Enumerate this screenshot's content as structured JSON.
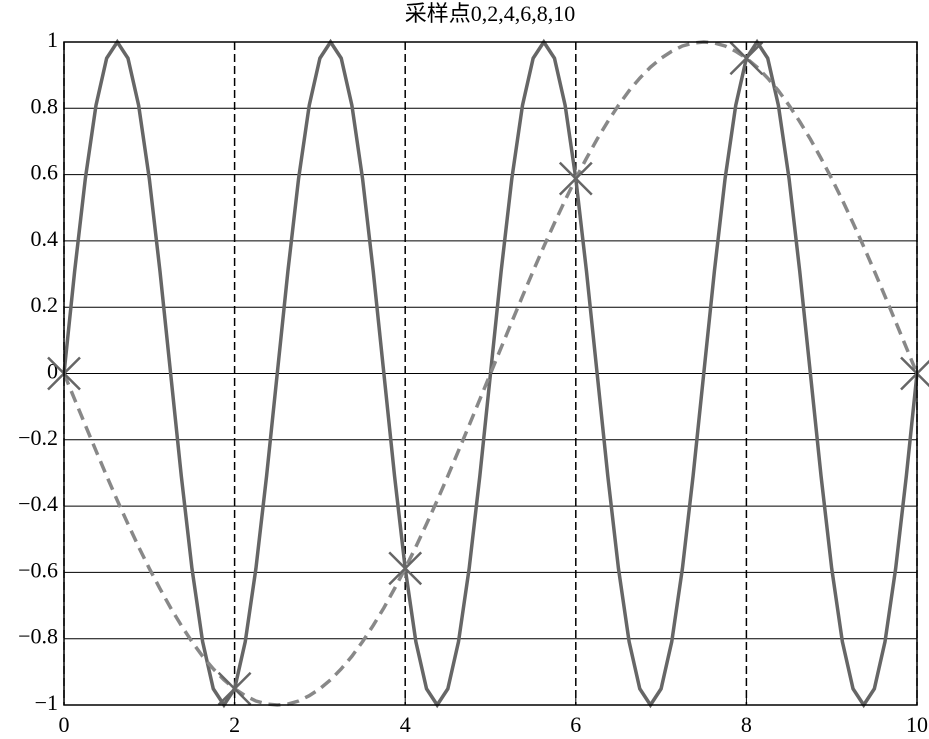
{
  "chart_data": {
    "type": "line",
    "title": "采样点0,2,4,6,8,10",
    "x": [
      0,
      0.125,
      0.25,
      0.375,
      0.5,
      0.625,
      0.75,
      0.875,
      1,
      1.125,
      1.25,
      1.375,
      1.5,
      1.625,
      1.75,
      1.875,
      2,
      2.125,
      2.25,
      2.375,
      2.5,
      2.625,
      2.75,
      2.875,
      3,
      3.125,
      3.25,
      3.375,
      3.5,
      3.625,
      3.75,
      3.875,
      4,
      4.125,
      4.25,
      4.375,
      4.5,
      4.625,
      4.75,
      4.875,
      5,
      5.125,
      5.25,
      5.375,
      5.5,
      5.625,
      5.75,
      5.875,
      6,
      6.125,
      6.25,
      6.375,
      6.5,
      6.625,
      6.75,
      6.875,
      7,
      7.125,
      7.25,
      7.375,
      7.5,
      7.625,
      7.75,
      7.875,
      8,
      8.125,
      8.25,
      8.375,
      8.5,
      8.625,
      8.75,
      8.875,
      9,
      9.125,
      9.25,
      9.375,
      9.5,
      9.625,
      9.75,
      9.875,
      10
    ],
    "series": [
      {
        "color": "#666666",
        "dash": false,
        "values": [
          0,
          0.309,
          0.588,
          0.809,
          0.951,
          1,
          0.951,
          0.809,
          0.588,
          0.309,
          0,
          -0.309,
          -0.588,
          -0.809,
          -0.951,
          -1,
          -0.951,
          -0.809,
          -0.588,
          -0.309,
          0,
          0.309,
          0.588,
          0.809,
          0.951,
          1,
          0.951,
          0.809,
          0.588,
          0.309,
          0,
          -0.309,
          -0.588,
          -0.809,
          -0.951,
          -1,
          -0.951,
          -0.809,
          -0.588,
          -0.309,
          0,
          0.309,
          0.588,
          0.809,
          0.951,
          1,
          0.951,
          0.809,
          0.588,
          0.309,
          0,
          -0.309,
          -0.588,
          -0.809,
          -0.951,
          -1,
          -0.951,
          -0.809,
          -0.588,
          -0.309,
          0,
          0.309,
          0.588,
          0.809,
          0.951,
          1,
          0.951,
          0.809,
          0.588,
          0.309,
          0,
          -0.309,
          -0.588,
          -0.809,
          -0.951,
          -1,
          -0.951,
          -0.809,
          -0.588,
          -0.309,
          0
        ]
      },
      {
        "color": "#888888",
        "dash": true,
        "values": [
          0,
          -0.078,
          -0.156,
          -0.233,
          -0.309,
          -0.383,
          -0.454,
          -0.523,
          -0.588,
          -0.649,
          -0.707,
          -0.76,
          -0.809,
          -0.853,
          -0.891,
          -0.924,
          -0.951,
          -0.972,
          -0.988,
          -0.997,
          -1,
          -0.997,
          -0.988,
          -0.972,
          -0.951,
          -0.924,
          -0.891,
          -0.853,
          -0.809,
          -0.76,
          -0.707,
          -0.649,
          -0.588,
          -0.523,
          -0.454,
          -0.383,
          -0.309,
          -0.233,
          -0.156,
          -0.078,
          0,
          0.078,
          0.156,
          0.233,
          0.309,
          0.383,
          0.454,
          0.523,
          0.588,
          0.649,
          0.707,
          0.76,
          0.809,
          0.853,
          0.891,
          0.924,
          0.951,
          0.972,
          0.988,
          0.997,
          1,
          0.997,
          0.988,
          0.972,
          0.951,
          0.924,
          0.891,
          0.853,
          0.809,
          0.76,
          0.707,
          0.649,
          0.588,
          0.523,
          0.454,
          0.383,
          0.309,
          0.233,
          0.156,
          0.078,
          0
        ]
      }
    ],
    "samples": {
      "color": "#666666",
      "x": [
        0,
        2,
        4,
        6,
        8,
        10
      ],
      "values": [
        0,
        -0.951,
        -0.588,
        0.588,
        0.951,
        0
      ]
    },
    "xlim": [
      0,
      10
    ],
    "xticks": [
      0,
      2,
      4,
      6,
      8,
      10
    ],
    "ylim": [
      -1,
      1
    ],
    "yticks": [
      {
        "value": -1,
        "label": "−1"
      },
      {
        "value": -0.8,
        "label": "−0.8"
      },
      {
        "value": -0.6,
        "label": "−0.6"
      },
      {
        "value": -0.4,
        "label": "−0.4"
      },
      {
        "value": -0.2,
        "label": "−0.2"
      },
      0,
      0.2,
      0.4,
      0.6,
      0.8,
      1
    ],
    "grid": true
  }
}
